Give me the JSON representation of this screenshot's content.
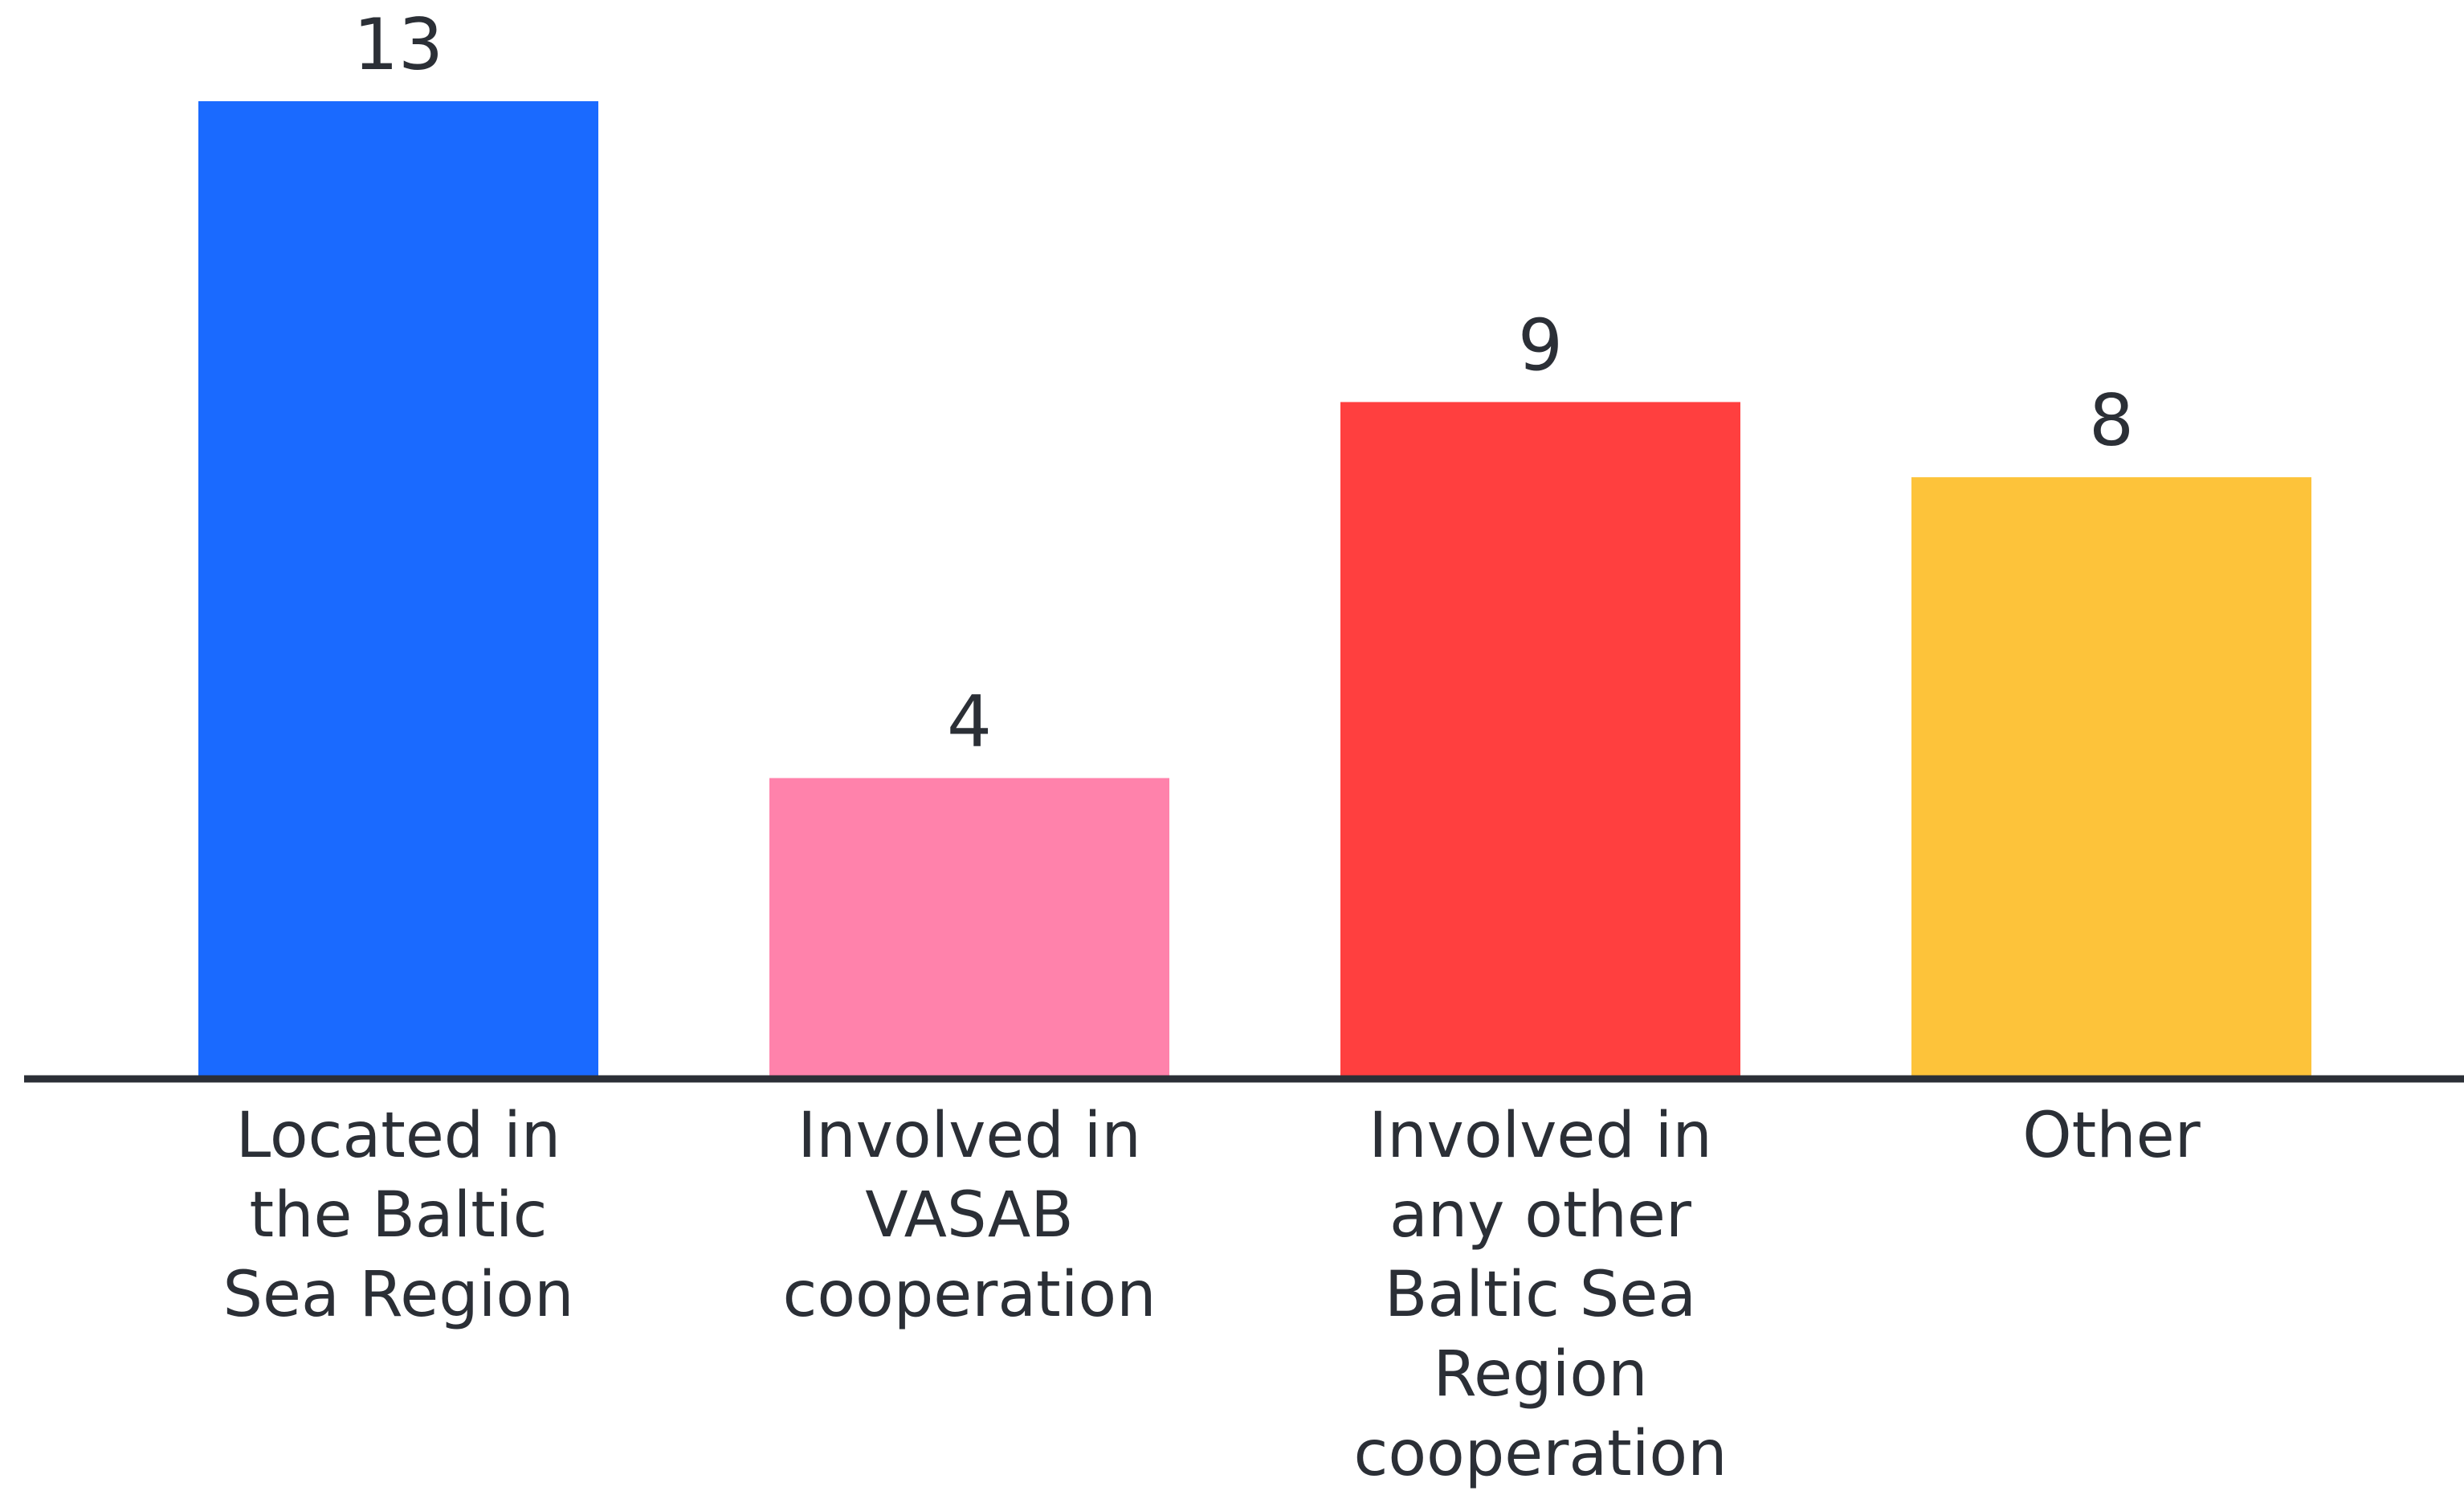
{
  "chart_data": {
    "type": "bar",
    "categories": [
      "Located in the Baltic Sea Region",
      "Involved in VASAB cooperation",
      "Involved in any other Baltic Sea Region cooperation",
      "Other"
    ],
    "category_lines": [
      [
        "Located in",
        "the Baltic",
        "Sea Region"
      ],
      [
        "Involved in",
        "VASAB",
        "cooperation"
      ],
      [
        "Involved in",
        "any other",
        "Baltic Sea",
        "Region",
        "cooperation"
      ],
      [
        "Other"
      ]
    ],
    "values": [
      13,
      4,
      9,
      8
    ],
    "value_labels": [
      "13",
      "4",
      "9",
      "8"
    ],
    "colors": [
      "#1a6aff",
      "#ff82ab",
      "#ff3f3f",
      "#fdc33a"
    ],
    "axis_color": "#2b2f36",
    "ylim": [
      0,
      13
    ],
    "grid": false,
    "legend": "none"
  }
}
